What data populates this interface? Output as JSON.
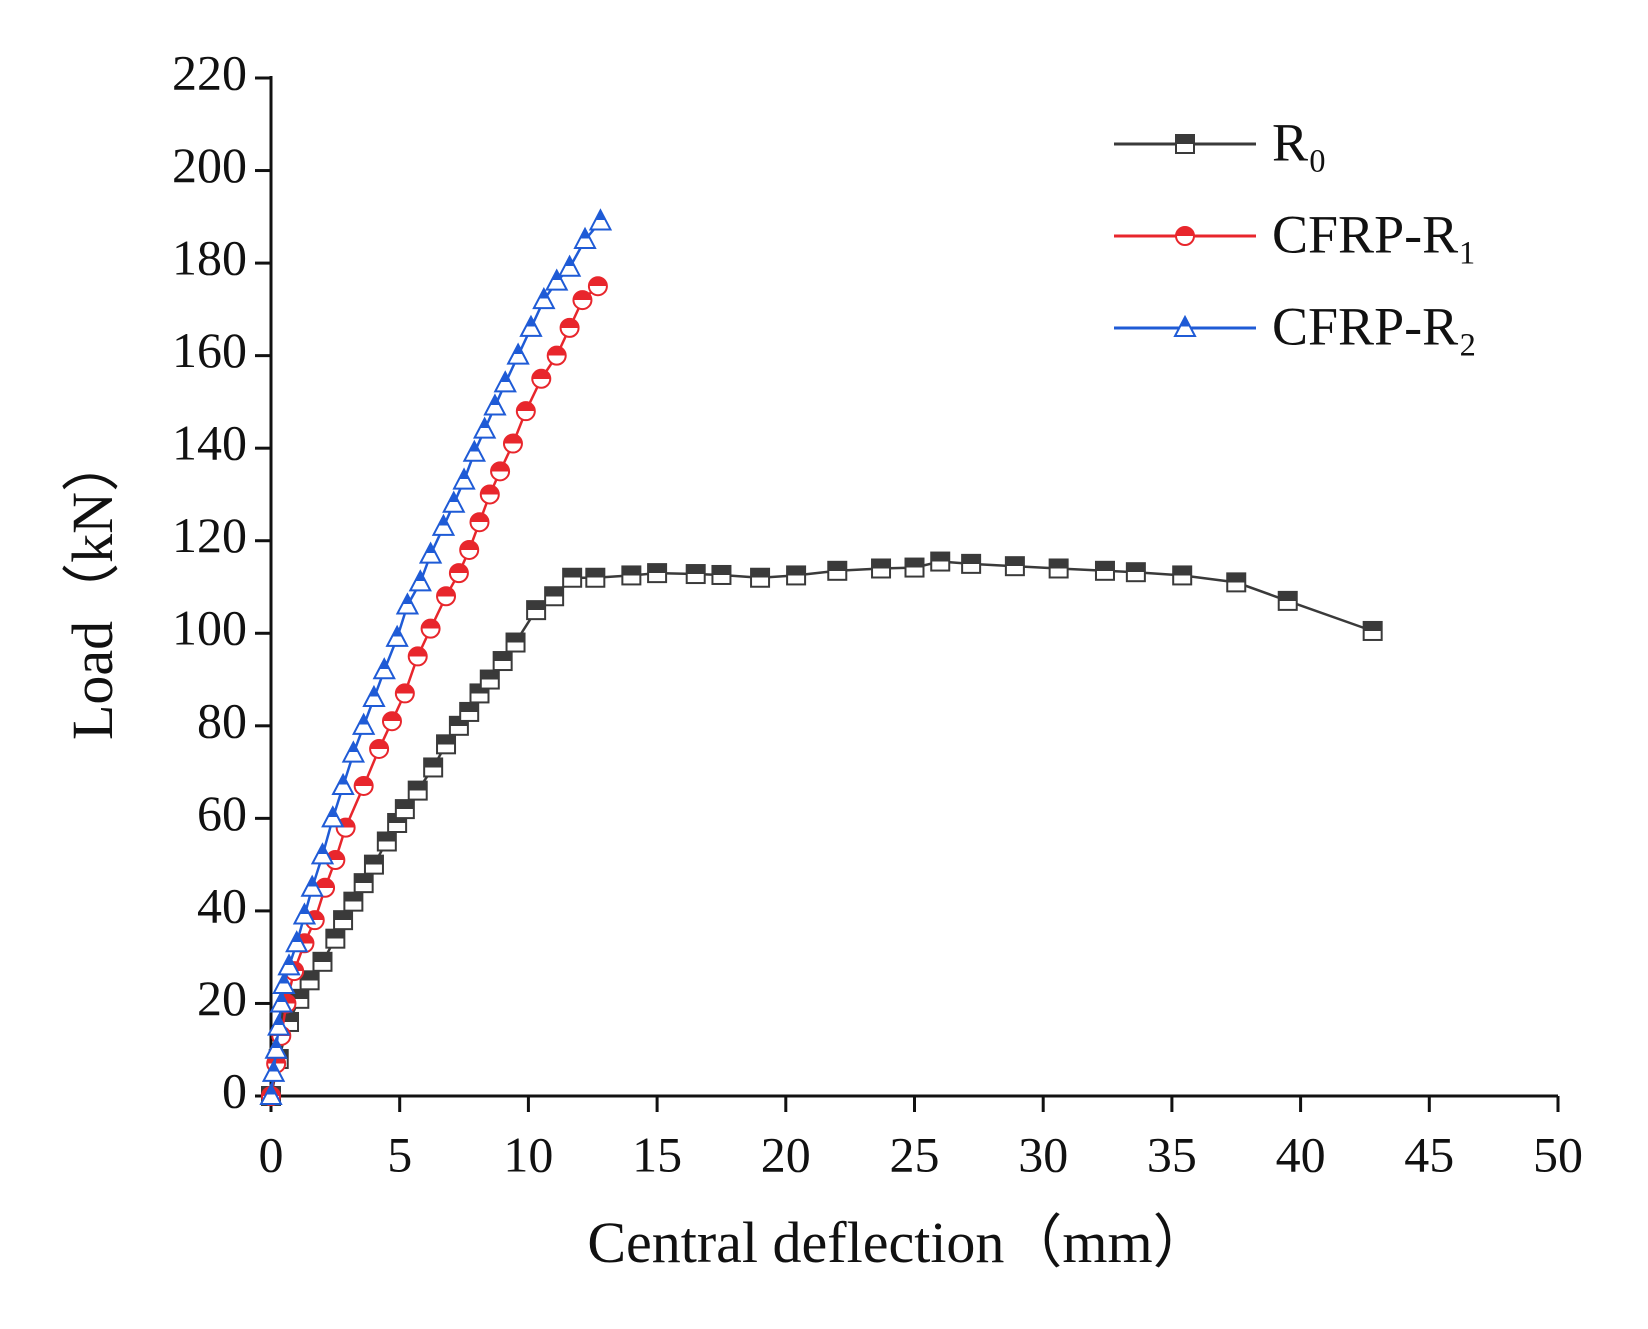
{
  "chart_data": {
    "type": "line",
    "x_label": "Central deflection（mm）",
    "y_label": "Load（kN）",
    "xlim": [
      0,
      50
    ],
    "xticks": [
      0,
      5,
      10,
      15,
      20,
      25,
      30,
      35,
      40,
      45,
      50
    ],
    "ylim": [
      0,
      220
    ],
    "yticks": [
      0,
      20,
      40,
      60,
      80,
      100,
      120,
      140,
      160,
      180,
      200,
      220
    ],
    "legend": "upper right",
    "series": [
      {
        "name": "R₀",
        "color": "#3a3a3a",
        "marker": "square",
        "x": [
          0,
          0.3,
          0.7,
          1.1,
          1.5,
          2,
          2.5,
          2.8,
          3.2,
          3.6,
          4,
          4.5,
          4.9,
          5.2,
          5.7,
          6.3,
          6.8,
          7.3,
          7.7,
          8.1,
          8.5,
          9,
          9.5,
          10.3,
          11,
          11.7,
          12.6,
          14,
          15,
          16.5,
          17.5,
          19,
          20.4,
          22,
          23.7,
          25,
          26,
          27.2,
          28.9,
          30.6,
          32.4,
          33.6,
          35.4,
          37.5,
          39.5,
          42.8
        ],
        "values": [
          0,
          8,
          16,
          21,
          25,
          29,
          34,
          38,
          42,
          46,
          50,
          55,
          59,
          62,
          66,
          71,
          76,
          80,
          83,
          87,
          90,
          94,
          98,
          105,
          108,
          112,
          112,
          112.5,
          113,
          112.8,
          112.6,
          112,
          112.5,
          113.5,
          114,
          114.2,
          115.5,
          115,
          114.5,
          114,
          113.5,
          113.2,
          112.5,
          111,
          107,
          100.5
        ]
      },
      {
        "name": "CFRP-R₁",
        "color": "#e8262c",
        "marker": "circle",
        "x": [
          0,
          0.2,
          0.4,
          0.6,
          0.9,
          1.3,
          1.7,
          2.1,
          2.5,
          2.9,
          3.6,
          4.2,
          4.7,
          5.2,
          5.7,
          6.2,
          6.8,
          7.3,
          7.7,
          8.1,
          8.5,
          8.9,
          9.4,
          9.9,
          10.5,
          11.1,
          11.6,
          12.1,
          12.7
        ],
        "values": [
          0,
          7,
          13,
          20,
          27,
          33,
          38,
          45,
          51,
          58,
          67,
          75,
          81,
          87,
          95,
          101,
          108,
          113,
          118,
          124,
          130,
          135,
          141,
          148,
          155,
          160,
          166,
          172,
          175
        ]
      },
      {
        "name": "CFRP-R₂",
        "color": "#1f5bd6",
        "marker": "triangle",
        "x": [
          0,
          0.1,
          0.2,
          0.3,
          0.4,
          0.5,
          0.7,
          1.0,
          1.3,
          1.6,
          2.0,
          2.4,
          2.8,
          3.2,
          3.6,
          4.0,
          4.4,
          4.9,
          5.3,
          5.8,
          6.2,
          6.7,
          7.1,
          7.5,
          7.9,
          8.3,
          8.7,
          9.1,
          9.6,
          10.1,
          10.6,
          11.1,
          11.6,
          12.2,
          12.8
        ],
        "values": [
          0,
          5,
          10,
          15,
          20,
          24,
          28,
          33,
          39,
          45,
          52,
          60,
          67,
          74,
          80,
          86,
          92,
          99,
          106,
          111,
          117,
          123,
          128,
          133,
          139,
          144,
          149,
          154,
          160,
          166,
          172,
          176,
          179,
          185,
          189
        ]
      }
    ]
  }
}
